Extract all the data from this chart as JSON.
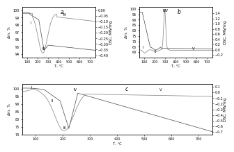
{
  "panel_a": {
    "label": "a",
    "tga_color": "#555555",
    "dsc_color": "#888888",
    "xlim": [
      50,
      750
    ],
    "xticks": [
      100,
      200,
      300,
      400,
      500,
      600,
      700
    ],
    "tga_ylim": [
      93.5,
      100.5
    ],
    "tga_yticks": [
      94,
      95,
      96,
      97,
      98,
      99,
      100
    ],
    "dsc_ylim": [
      -0.42,
      0.03
    ],
    "dsc_yticks": [
      0.0,
      -0.05,
      -0.1,
      -0.15,
      -0.2,
      -0.25,
      -0.3,
      -0.35,
      -0.4
    ]
  },
  "panel_b": {
    "label": "b",
    "tga_color": "#555555",
    "dsc_color": "#888888",
    "xlim": [
      50,
      750
    ],
    "xticks": [
      100,
      200,
      300,
      400,
      500,
      600,
      700
    ],
    "tga_ylim": [
      55,
      102
    ],
    "tga_yticks": [
      60,
      65,
      70,
      75,
      80,
      85,
      90,
      95,
      100
    ],
    "dsc_ylim": [
      -0.3,
      1.65
    ],
    "dsc_yticks": [
      -0.2,
      0.0,
      0.2,
      0.4,
      0.6,
      0.8,
      1.0,
      1.2,
      1.4
    ]
  },
  "panel_c": {
    "label": "c",
    "tga_color": "#555555",
    "dsc_color": "#888888",
    "xlim": [
      50,
      750
    ],
    "xticks": [
      100,
      200,
      300,
      400,
      500,
      600,
      700
    ],
    "tga_ylim": [
      70,
      103
    ],
    "tga_yticks": [
      70,
      75,
      80,
      85,
      90,
      95,
      100
    ],
    "dsc_ylim": [
      -0.75,
      0.15
    ],
    "dsc_yticks": [
      0.1,
      0.0,
      -0.1,
      -0.2,
      -0.3,
      -0.4,
      -0.5,
      -0.6,
      -0.7
    ]
  }
}
